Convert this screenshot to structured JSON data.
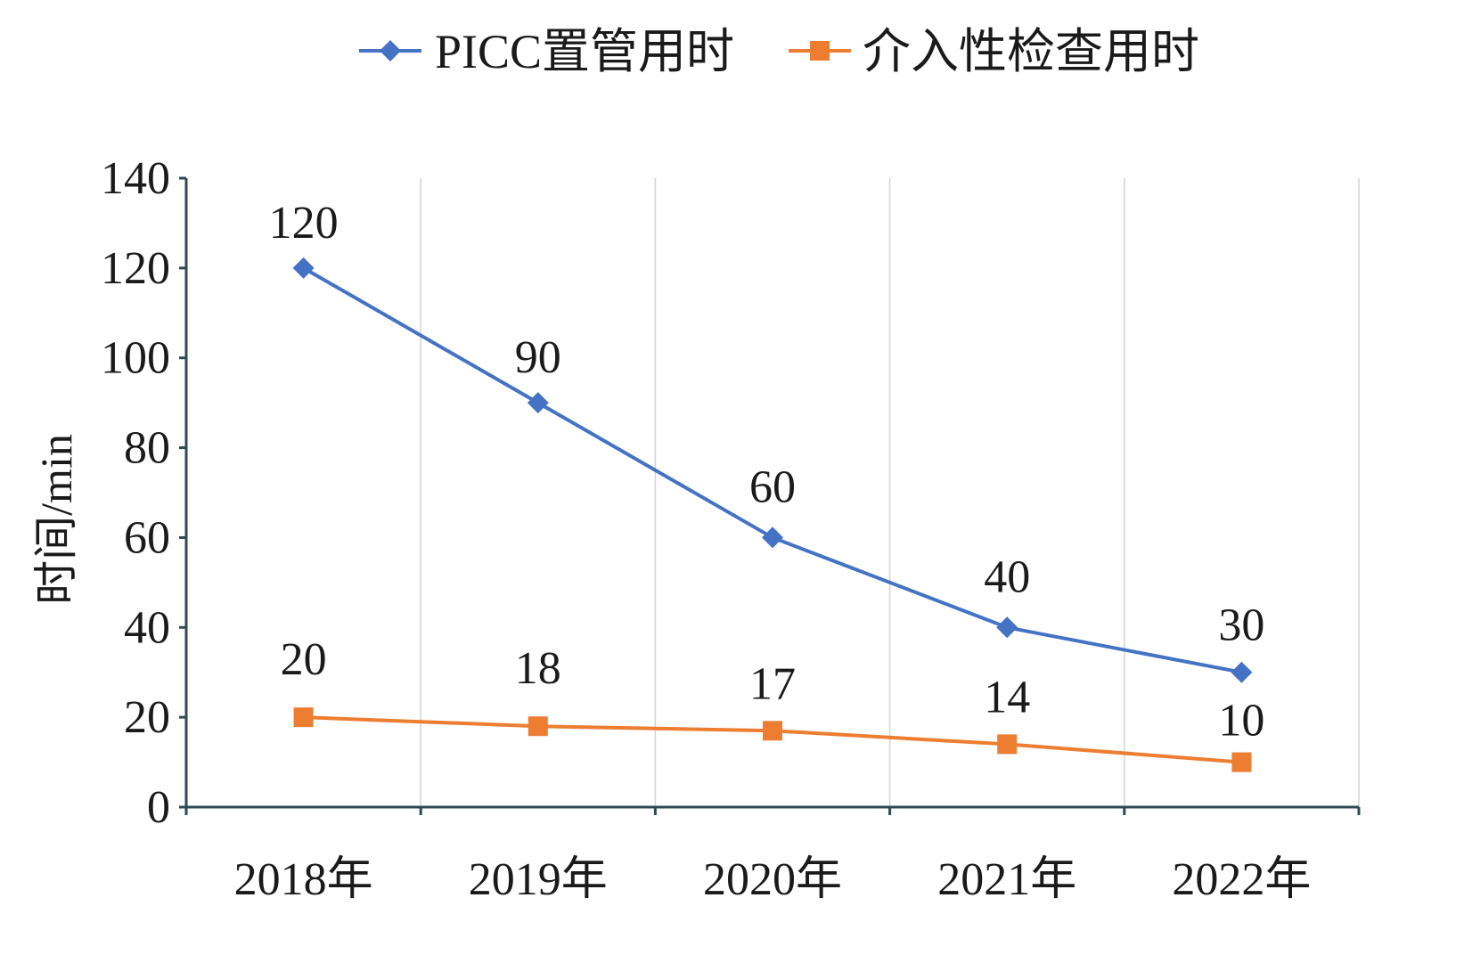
{
  "chart_data": {
    "type": "line",
    "categories": [
      "2018年",
      "2019年",
      "2020年",
      "2021年",
      "2022年"
    ],
    "series": [
      {
        "name": "PICC置管用时",
        "values": [
          120,
          90,
          60,
          40,
          30
        ],
        "color": "#4472C4",
        "marker": "diamond"
      },
      {
        "name": "介入性检查用时",
        "values": [
          20,
          18,
          17,
          14,
          10
        ],
        "color": "#ED7D31",
        "marker": "square"
      }
    ],
    "ylabel": "时间/min",
    "xlabel": "",
    "ylim": [
      0,
      140
    ],
    "yticks": [
      0,
      20,
      40,
      60,
      80,
      100,
      120,
      140
    ],
    "grid": "vertical",
    "legend": "top-center"
  }
}
